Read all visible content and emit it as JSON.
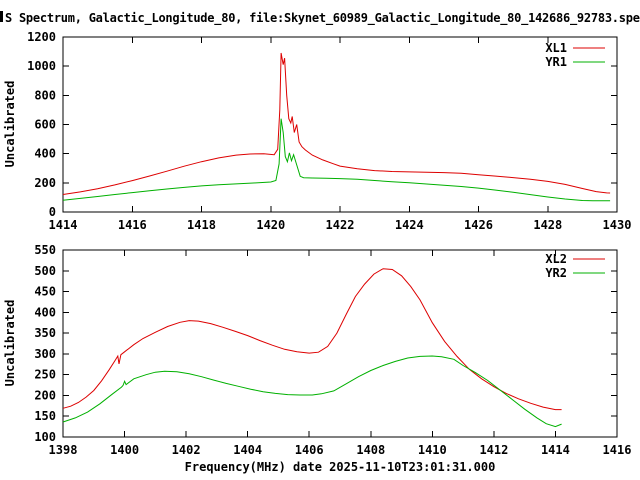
{
  "title": "S Spectrum, Galactic_Longitude_80, file:Skynet_60989_Galactic_Longitude_80_142686_92783.spec",
  "colors": {
    "background": "#ffffff",
    "axis": "#000000",
    "text": "#000000",
    "series_red": "#dd0000",
    "series_green": "#00b000"
  },
  "chart_data": [
    {
      "type": "line",
      "title": "",
      "xlabel": "",
      "ylabel": "Uncalibrated",
      "xlim": [
        1414,
        1430
      ],
      "ylim": [
        0,
        1200
      ],
      "xticks": [
        1414,
        1416,
        1418,
        1420,
        1422,
        1424,
        1426,
        1428,
        1430
      ],
      "yticks": [
        0,
        200,
        400,
        600,
        800,
        1000,
        1200
      ],
      "grid": false,
      "legend_position": "top-right",
      "series": [
        {
          "name": "XL1",
          "color": "#dd0000",
          "points": [
            [
              1414,
              120
            ],
            [
              1414.5,
              138
            ],
            [
              1415,
              160
            ],
            [
              1415.5,
              186
            ],
            [
              1416,
              215
            ],
            [
              1416.5,
              247
            ],
            [
              1417,
              280
            ],
            [
              1417.5,
              314
            ],
            [
              1418,
              345
            ],
            [
              1418.5,
              371
            ],
            [
              1419,
              390
            ],
            [
              1419.4,
              398
            ],
            [
              1419.8,
              400
            ],
            [
              1420.1,
              393
            ],
            [
              1420.2,
              430
            ],
            [
              1420.26,
              700
            ],
            [
              1420.3,
              1090
            ],
            [
              1420.36,
              1010
            ],
            [
              1420.4,
              1055
            ],
            [
              1420.46,
              800
            ],
            [
              1420.52,
              640
            ],
            [
              1420.58,
              610
            ],
            [
              1420.62,
              655
            ],
            [
              1420.68,
              545
            ],
            [
              1420.75,
              600
            ],
            [
              1420.82,
              480
            ],
            [
              1420.9,
              448
            ],
            [
              1421,
              425
            ],
            [
              1421.2,
              390
            ],
            [
              1421.5,
              357
            ],
            [
              1421.8,
              331
            ],
            [
              1422,
              315
            ],
            [
              1422.5,
              296
            ],
            [
              1423,
              284
            ],
            [
              1423.5,
              278
            ],
            [
              1424,
              275
            ],
            [
              1424.5,
              272
            ],
            [
              1425,
              270
            ],
            [
              1425.5,
              266
            ],
            [
              1426,
              256
            ],
            [
              1426.5,
              246
            ],
            [
              1427,
              236
            ],
            [
              1427.5,
              224
            ],
            [
              1428,
              210
            ],
            [
              1428.5,
              189
            ],
            [
              1429,
              161
            ],
            [
              1429.4,
              140
            ],
            [
              1429.7,
              131
            ],
            [
              1429.8,
              130
            ]
          ]
        },
        {
          "name": "YR1",
          "color": "#00b000",
          "points": [
            [
              1414,
              80
            ],
            [
              1414.5,
              93
            ],
            [
              1415,
              106
            ],
            [
              1415.5,
              120
            ],
            [
              1416,
              133
            ],
            [
              1416.5,
              146
            ],
            [
              1417,
              158
            ],
            [
              1417.5,
              169
            ],
            [
              1418,
              179
            ],
            [
              1418.5,
              187
            ],
            [
              1419,
              193
            ],
            [
              1419.5,
              199
            ],
            [
              1420,
              206
            ],
            [
              1420.15,
              216
            ],
            [
              1420.24,
              330
            ],
            [
              1420.3,
              640
            ],
            [
              1420.36,
              545
            ],
            [
              1420.42,
              380
            ],
            [
              1420.48,
              345
            ],
            [
              1420.54,
              405
            ],
            [
              1420.6,
              352
            ],
            [
              1420.66,
              393
            ],
            [
              1420.74,
              330
            ],
            [
              1420.85,
              245
            ],
            [
              1420.95,
              235
            ],
            [
              1421.2,
              233
            ],
            [
              1421.6,
              232
            ],
            [
              1422,
              229
            ],
            [
              1422.5,
              224
            ],
            [
              1423,
              216
            ],
            [
              1423.5,
              208
            ],
            [
              1424,
              200
            ],
            [
              1424.5,
              192
            ],
            [
              1425,
              184
            ],
            [
              1425.5,
              175
            ],
            [
              1426,
              164
            ],
            [
              1426.5,
              150
            ],
            [
              1427,
              135
            ],
            [
              1427.5,
              119
            ],
            [
              1428,
              103
            ],
            [
              1428.5,
              89
            ],
            [
              1429,
              79
            ],
            [
              1429.3,
              77
            ],
            [
              1429.8,
              77
            ]
          ]
        }
      ]
    },
    {
      "type": "line",
      "title": "",
      "xlabel": "Frequency(MHz) date 2025-11-10T23:01:31.000",
      "ylabel": "Uncalibrated",
      "xlim": [
        1398,
        1416
      ],
      "ylim": [
        100,
        550
      ],
      "xticks": [
        1398,
        1400,
        1402,
        1404,
        1406,
        1408,
        1410,
        1412,
        1414,
        1416
      ],
      "yticks": [
        100,
        150,
        200,
        250,
        300,
        350,
        400,
        450,
        500,
        550
      ],
      "grid": false,
      "legend_position": "top-right",
      "series": [
        {
          "name": "XL2",
          "color": "#dd0000",
          "points": [
            [
              1398,
              169
            ],
            [
              1398.25,
              174
            ],
            [
              1398.5,
              183
            ],
            [
              1398.75,
              196
            ],
            [
              1399,
              212
            ],
            [
              1399.25,
              235
            ],
            [
              1399.5,
              262
            ],
            [
              1399.7,
              285
            ],
            [
              1399.78,
              295
            ],
            [
              1399.82,
              276
            ],
            [
              1399.88,
              298
            ],
            [
              1400,
              305
            ],
            [
              1400.3,
              322
            ],
            [
              1400.6,
              337
            ],
            [
              1401,
              352
            ],
            [
              1401.4,
              366
            ],
            [
              1401.8,
              376
            ],
            [
              1402.1,
              380
            ],
            [
              1402.4,
              379
            ],
            [
              1402.8,
              373
            ],
            [
              1403.2,
              364
            ],
            [
              1403.6,
              354
            ],
            [
              1404,
              344
            ],
            [
              1404.4,
              332
            ],
            [
              1404.8,
              321
            ],
            [
              1405.2,
              311
            ],
            [
              1405.6,
              305
            ],
            [
              1406,
              302
            ],
            [
              1406.3,
              304
            ],
            [
              1406.6,
              318
            ],
            [
              1406.9,
              350
            ],
            [
              1407.2,
              395
            ],
            [
              1407.5,
              438
            ],
            [
              1407.8,
              468
            ],
            [
              1408.1,
              492
            ],
            [
              1408.4,
              505
            ],
            [
              1408.7,
              503
            ],
            [
              1409,
              488
            ],
            [
              1409.3,
              462
            ],
            [
              1409.6,
              430
            ],
            [
              1410,
              375
            ],
            [
              1410.4,
              330
            ],
            [
              1410.8,
              294
            ],
            [
              1411.2,
              263
            ],
            [
              1411.6,
              240
            ],
            [
              1412,
              221
            ],
            [
              1412.4,
              205
            ],
            [
              1412.8,
              192
            ],
            [
              1413.2,
              181
            ],
            [
              1413.6,
              172
            ],
            [
              1414,
              166
            ],
            [
              1414.2,
              166
            ]
          ]
        },
        {
          "name": "YR2",
          "color": "#00b000",
          "points": [
            [
              1398,
              136
            ],
            [
              1398.4,
              146
            ],
            [
              1398.8,
              160
            ],
            [
              1399.2,
              180
            ],
            [
              1399.6,
              203
            ],
            [
              1399.9,
              220
            ],
            [
              1399.95,
              224
            ],
            [
              1400,
              234
            ],
            [
              1400.05,
              226
            ],
            [
              1400.3,
              240
            ],
            [
              1400.7,
              250
            ],
            [
              1401,
              256
            ],
            [
              1401.3,
              258
            ],
            [
              1401.7,
              257
            ],
            [
              1402.1,
              252
            ],
            [
              1402.5,
              245
            ],
            [
              1402.9,
              237
            ],
            [
              1403.3,
              229
            ],
            [
              1403.7,
              222
            ],
            [
              1404.1,
              215
            ],
            [
              1404.5,
              209
            ],
            [
              1404.9,
              205
            ],
            [
              1405.3,
              202
            ],
            [
              1405.7,
              201
            ],
            [
              1406.1,
              201
            ],
            [
              1406.4,
              204
            ],
            [
              1406.8,
              211
            ],
            [
              1407.2,
              228
            ],
            [
              1407.6,
              245
            ],
            [
              1408,
              260
            ],
            [
              1408.4,
              272
            ],
            [
              1408.8,
              282
            ],
            [
              1409.2,
              290
            ],
            [
              1409.6,
              294
            ],
            [
              1410,
              295
            ],
            [
              1410.3,
              293
            ],
            [
              1410.7,
              287
            ],
            [
              1411,
              272
            ],
            [
              1411.4,
              255
            ],
            [
              1411.8,
              236
            ],
            [
              1412.2,
              213
            ],
            [
              1412.6,
              190
            ],
            [
              1413,
              167
            ],
            [
              1413.4,
              146
            ],
            [
              1413.7,
              132
            ],
            [
              1414,
              125
            ],
            [
              1414.2,
              131
            ]
          ]
        }
      ]
    }
  ]
}
